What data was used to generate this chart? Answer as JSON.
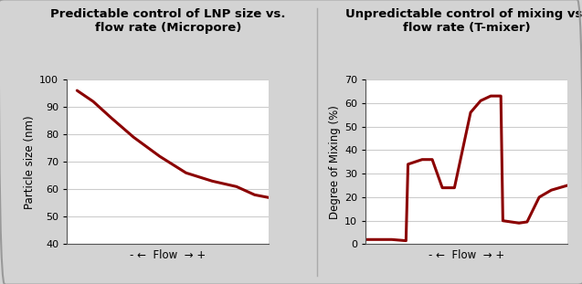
{
  "left": {
    "title": "Predictable control of LNP size vs.\nflow rate (Micropore)",
    "ylabel": "Particle size (nm)",
    "xlabel": "- ←  Flow  → +",
    "ylim": [
      40,
      100
    ],
    "yticks": [
      40,
      50,
      60,
      70,
      80,
      90,
      100
    ],
    "x": [
      0.05,
      0.13,
      0.22,
      0.33,
      0.46,
      0.59,
      0.72,
      0.84,
      0.93,
      1.0
    ],
    "y": [
      96,
      92,
      86,
      79,
      72,
      66,
      63,
      61,
      58,
      57
    ],
    "line_color": "#8B0000",
    "line_width": 2.2,
    "grid_x": false,
    "grid_y": true
  },
  "right": {
    "title": "Unpredictable control of mixing vs.\nflow rate (T-mixer)",
    "ylabel": "Degree of Mixing (%)",
    "xlabel": "- ←  Flow  → +",
    "ylim": [
      0,
      70
    ],
    "yticks": [
      0,
      10,
      20,
      30,
      40,
      50,
      60,
      70
    ],
    "x": [
      0.0,
      0.06,
      0.13,
      0.2,
      0.21,
      0.28,
      0.33,
      0.38,
      0.44,
      0.52,
      0.57,
      0.62,
      0.67,
      0.68,
      0.76,
      0.8,
      0.86,
      0.92,
      1.0
    ],
    "y": [
      2,
      2,
      2,
      1.5,
      34,
      36,
      36,
      24,
      24,
      56,
      61,
      63,
      63,
      10,
      9,
      9.5,
      20,
      23,
      25
    ],
    "line_color": "#8B0000",
    "line_width": 2.2,
    "grid_x": true,
    "grid_y": true
  },
  "bg_color": "#d3d3d3",
  "panel_bg_color": "#d3d3d3",
  "plot_bg_color": "#ffffff",
  "divider_color": "#aaaaaa",
  "title_fontsize": 9.5,
  "label_fontsize": 8.5,
  "tick_fontsize": 8,
  "grid_color": "#cccccc",
  "grid_lw": 0.8
}
